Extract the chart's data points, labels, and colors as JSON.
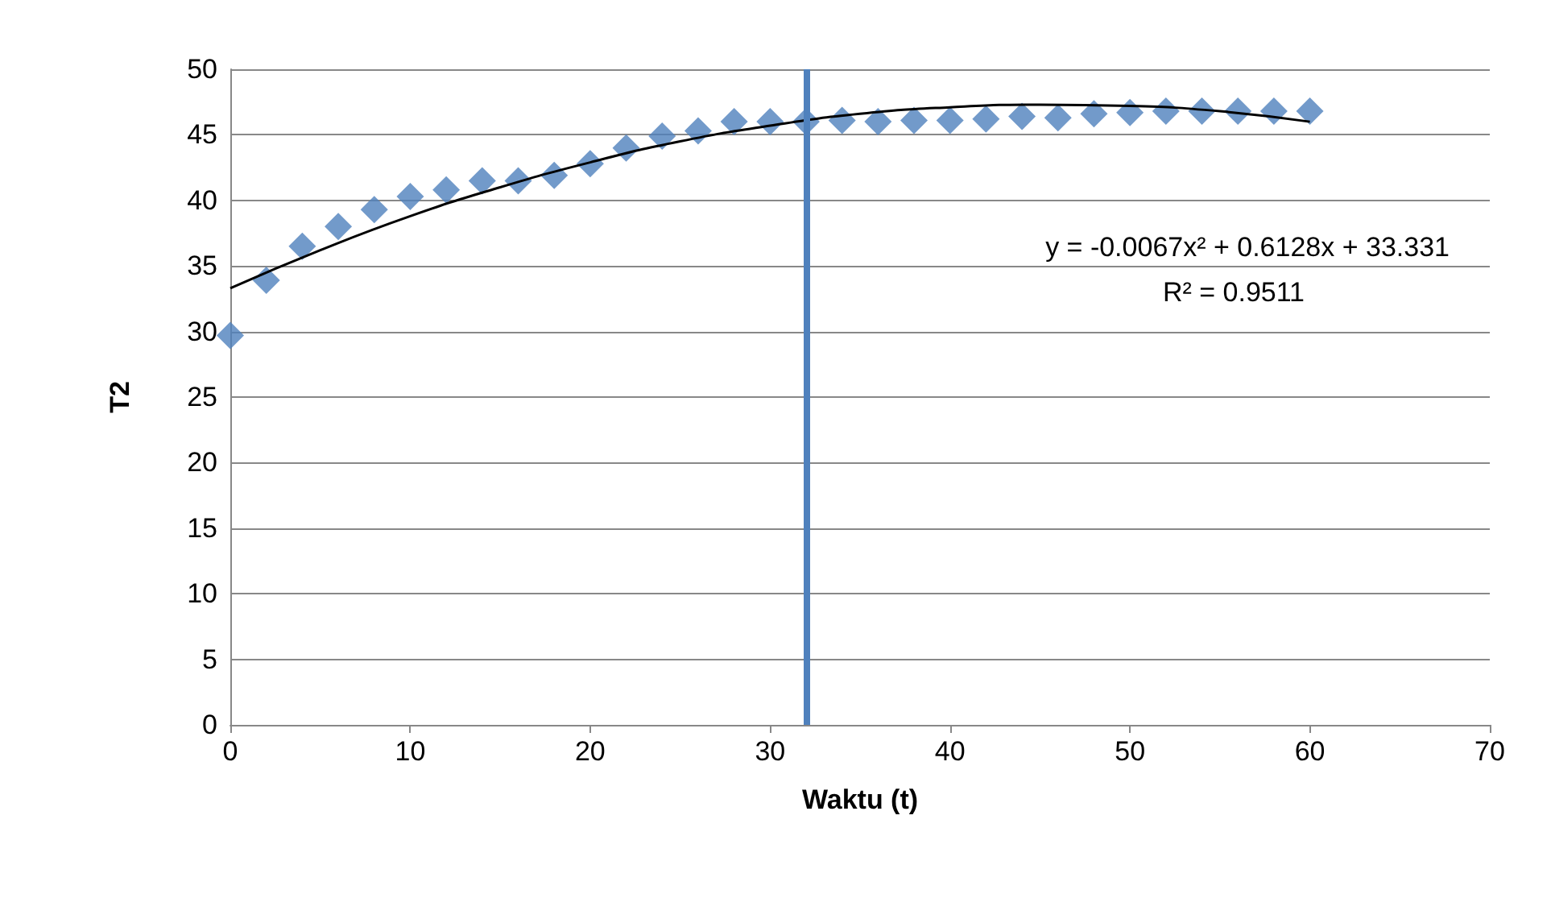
{
  "chart_data": {
    "type": "scatter",
    "xlabel": "Waktu (t)",
    "ylabel": "T2",
    "xlim": [
      0,
      70
    ],
    "xticks": [
      0,
      10,
      20,
      30,
      40,
      50,
      60,
      70
    ],
    "ylim": [
      0,
      50
    ],
    "yticks": [
      0,
      5,
      10,
      15,
      20,
      25,
      30,
      35,
      40,
      45,
      50
    ],
    "grid": "y",
    "series": [
      {
        "marker": "diamond",
        "color": "#4f81bd",
        "x": [
          0,
          2,
          4,
          6,
          8,
          10,
          12,
          14,
          16,
          18,
          20,
          22,
          24,
          26,
          28,
          30,
          32,
          34,
          36,
          38,
          40,
          42,
          44,
          46,
          48,
          50,
          52,
          54,
          56,
          58,
          60
        ],
        "values": [
          29.7,
          33.9,
          36.5,
          38.0,
          39.3,
          40.3,
          40.8,
          41.5,
          41.5,
          41.9,
          42.8,
          44.0,
          44.9,
          45.3,
          46.0,
          46.0,
          46.0,
          46.1,
          46.0,
          46.1,
          46.1,
          46.2,
          46.4,
          46.3,
          46.6,
          46.7,
          46.8,
          46.8,
          46.8,
          46.8,
          46.8
        ]
      },
      {
        "type": "line",
        "marker": "none",
        "color": "#000000",
        "x": [
          0,
          5,
          10,
          15,
          20,
          25,
          30,
          35,
          40,
          45,
          50,
          55,
          60
        ],
        "values": [
          33.3,
          36.2,
          38.8,
          41.0,
          42.9,
          44.5,
          45.7,
          46.6,
          47.1,
          47.3,
          47.2,
          46.8,
          46.0
        ]
      }
    ],
    "ref_lines": [
      {
        "axis": "x",
        "value": 32,
        "color": "#4f81bd"
      }
    ],
    "annotations": [
      "y = -0.0067x² + 0.6128x + 33.331",
      "R² = 0.9511"
    ]
  }
}
